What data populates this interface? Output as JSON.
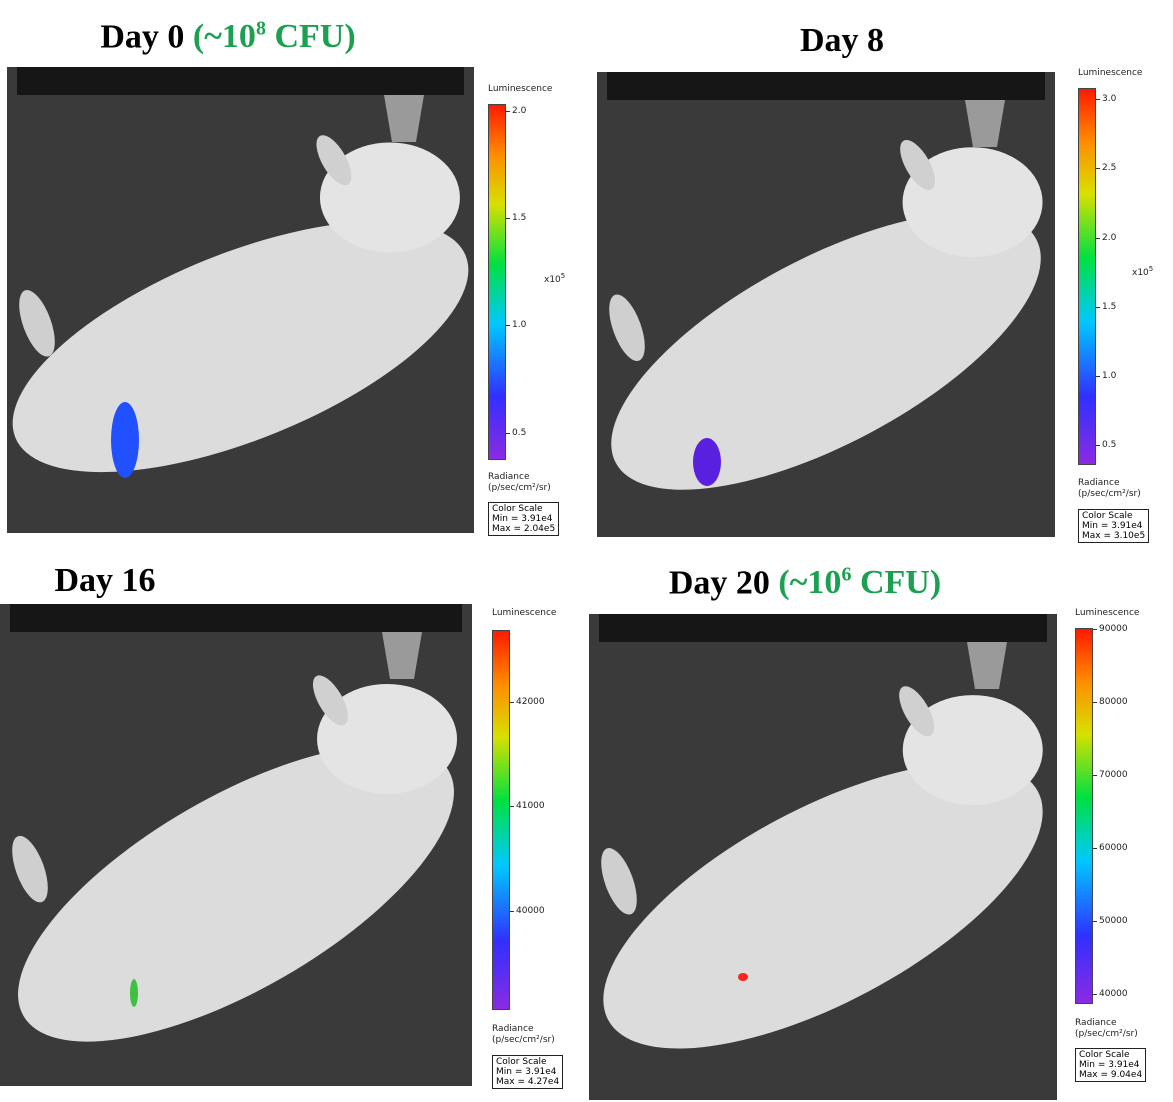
{
  "panels": [
    {
      "title": "Day 0",
      "dose": {
        "prefix": "(~10",
        "exponent": "8",
        "suffix": "CFU)"
      },
      "scale_title": "Luminescence",
      "ticks": [
        "2.0",
        "1.5",
        "1.0",
        "0.5"
      ],
      "multiplier": {
        "base": "x10",
        "exponent": "5"
      },
      "unit_title": "Radiance",
      "unit": "(p/sec/cm²/sr)",
      "box": {
        "title": "Color Scale",
        "min": "Min = 3.91e4",
        "max": "Max = 2.04e5"
      }
    },
    {
      "title": "Day 8",
      "scale_title": "Luminescence",
      "ticks": [
        "3.0",
        "2.5",
        "2.0",
        "1.5",
        "1.0",
        "0.5"
      ],
      "multiplier": {
        "base": "x10",
        "exponent": "5"
      },
      "unit_title": "Radiance",
      "unit": "(p/sec/cm²/sr)",
      "box": {
        "title": "Color Scale",
        "min": "Min = 3.91e4",
        "max": "Max = 3.10e5"
      }
    },
    {
      "title": "Day 16",
      "scale_title": "Luminescence",
      "ticks": [
        "42000",
        "41000",
        "40000"
      ],
      "unit_title": "Radiance",
      "unit": "(p/sec/cm²/sr)",
      "box": {
        "title": "Color Scale",
        "min": "Min = 3.91e4",
        "max": "Max = 4.27e4"
      }
    },
    {
      "title": "Day 20",
      "dose": {
        "prefix": "(~10",
        "exponent": "6",
        "suffix": "CFU)"
      },
      "scale_title": "Luminescence",
      "ticks": [
        "90000",
        "80000",
        "70000",
        "60000",
        "50000",
        "40000"
      ],
      "unit_title": "Radiance",
      "unit": "(p/sec/cm²/sr)",
      "box": {
        "title": "Color Scale",
        "min": "Min = 3.91e4",
        "max": "Max = 9.04e4"
      }
    }
  ]
}
